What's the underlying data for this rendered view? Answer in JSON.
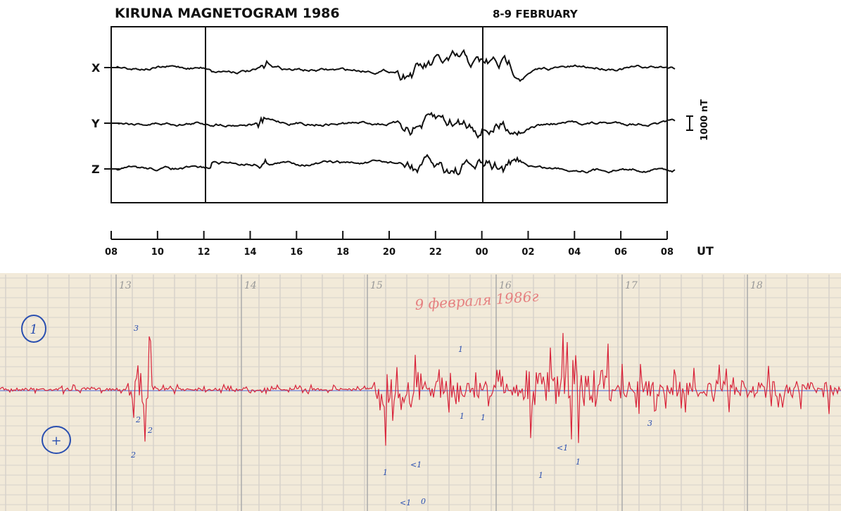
{
  "magnetogram": {
    "title": "KIRUNA MAGNETOGRAM 1986",
    "date": "8-9 FEBRUARY",
    "channels": [
      "X",
      "Y",
      "Z"
    ],
    "scale": "1000 nT",
    "axis_labels": [
      "08",
      "10",
      "12",
      "14",
      "16",
      "18",
      "20",
      "22",
      "00",
      "02",
      "04",
      "06",
      "08"
    ],
    "axis_unit": "UT"
  },
  "recording": {
    "note": "9 февраля 1986г",
    "hour_labels": [
      "13",
      "14",
      "15",
      "16",
      "17",
      "18"
    ],
    "circled": [
      "1",
      "+"
    ],
    "marks": [
      "3",
      "2",
      "2",
      "2",
      "1",
      "1",
      "1",
      "<1",
      "0",
      "1",
      "1",
      "<1",
      "1",
      "3",
      "<1"
    ]
  }
}
